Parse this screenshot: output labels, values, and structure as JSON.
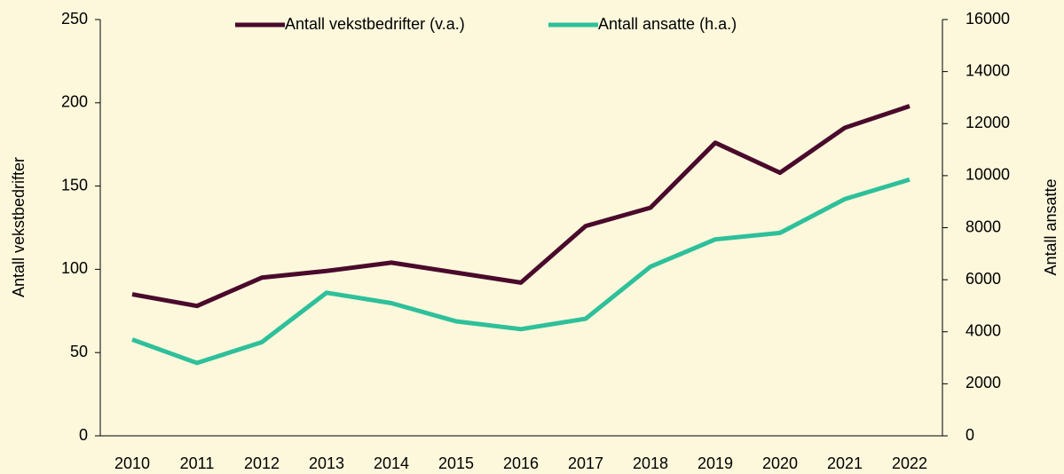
{
  "chart_data": {
    "type": "line",
    "categories": [
      "2010",
      "2011",
      "2012",
      "2013",
      "2014",
      "2015",
      "2016",
      "2017",
      "2018",
      "2019",
      "2020",
      "2021",
      "2022"
    ],
    "series": [
      {
        "name": "Antall vekstbedrifter (v.a.)",
        "color": "#4a0a2c",
        "values": [
          85,
          78,
          95,
          99,
          104,
          98,
          92,
          126,
          137,
          176,
          158,
          185,
          198
        ]
      },
      {
        "name": "Antall ansatte (h.a.)",
        "color": "#2ec09a",
        "axis": "y2",
        "values": [
          3700,
          2800,
          3600,
          5500,
          5100,
          4400,
          4100,
          4500,
          6500,
          7550,
          7800,
          9100,
          9850
        ]
      }
    ],
    "ylabel": "Antall vekstbedrifter",
    "y2label": "Antall ansatte",
    "ylim": [
      0,
      250
    ],
    "yticks": [
      0,
      50,
      100,
      150,
      200,
      250
    ],
    "y2lim": [
      0,
      16000
    ],
    "y2ticks": [
      0,
      2000,
      4000,
      6000,
      8000,
      10000,
      12000,
      14000,
      16000
    ],
    "legend": "top"
  }
}
